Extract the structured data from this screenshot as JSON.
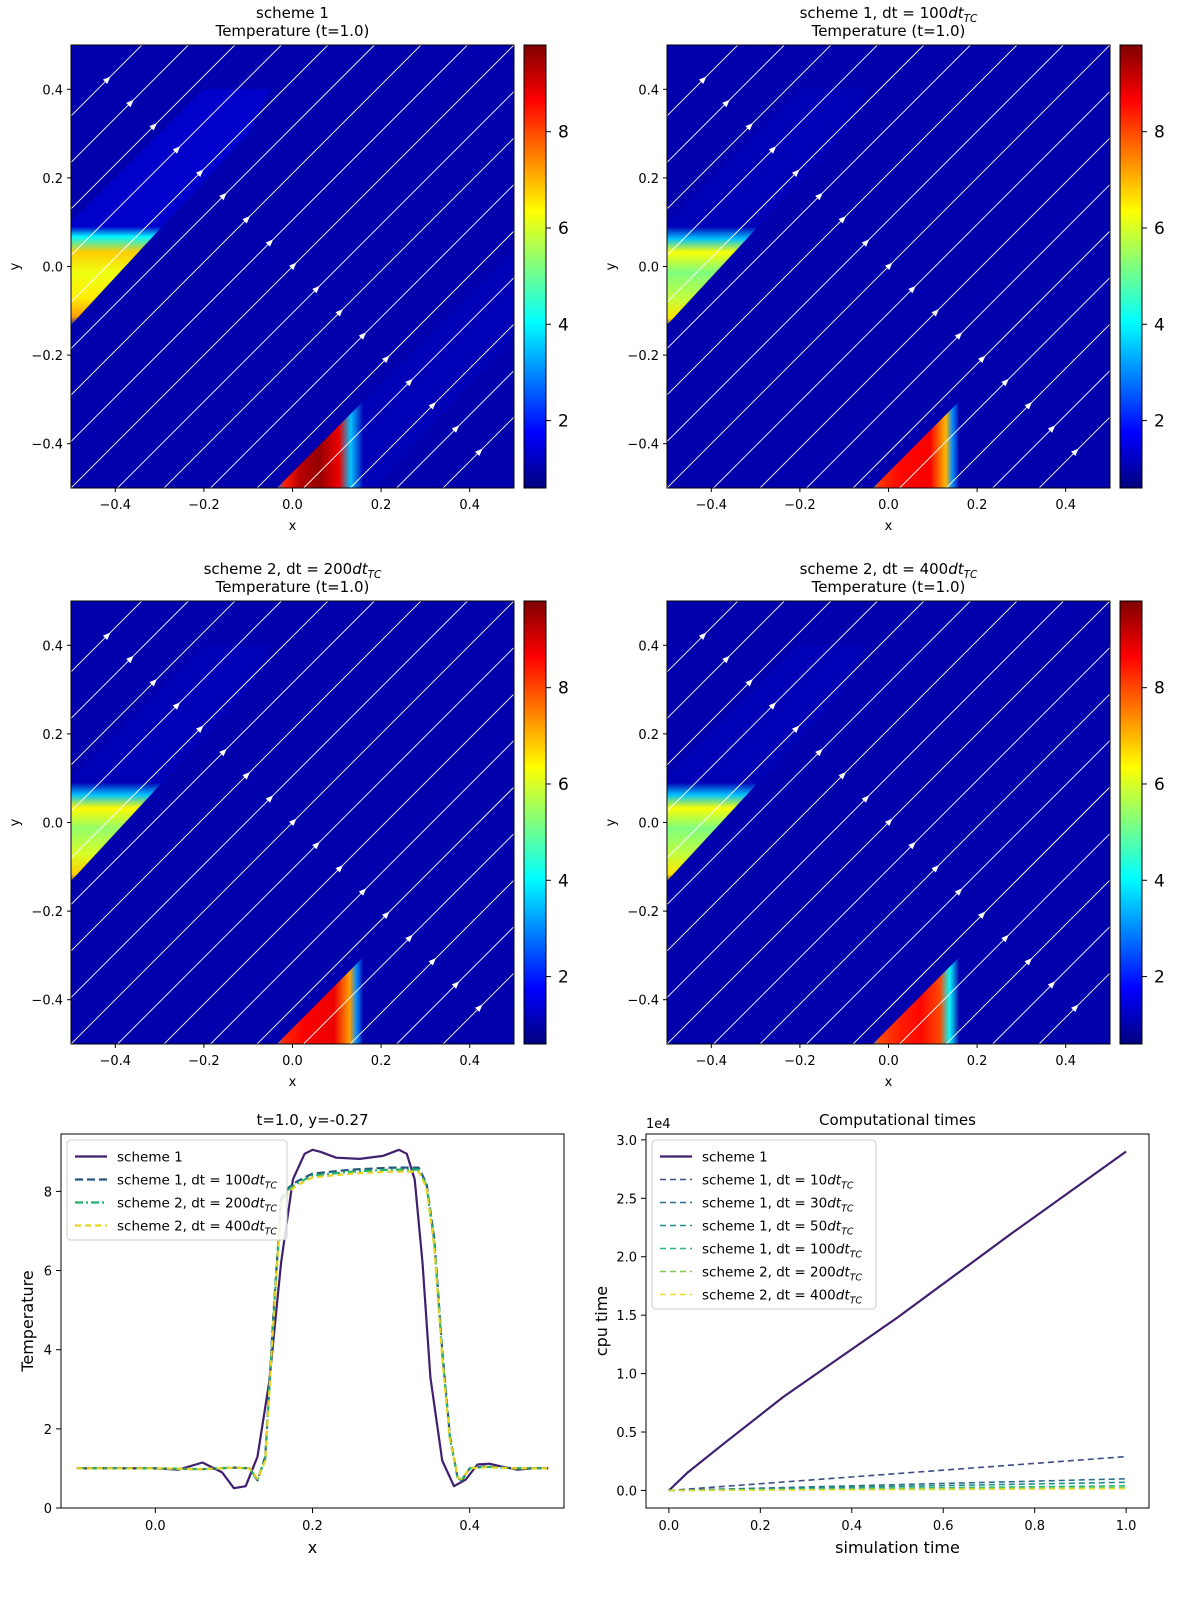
{
  "colors": {
    "jet": [
      "#00007f",
      "#0000ff",
      "#007fff",
      "#00ffff",
      "#7fff7f",
      "#ffff00",
      "#ff7f00",
      "#ff0000",
      "#7f0000"
    ],
    "scheme1": "#3f1f6e",
    "s1_100": "#24587d",
    "s2_200": "#22b26e",
    "s2_400": "#e6d21f",
    "s1_10": "#3c4b8a",
    "s1_30": "#2c6b8e",
    "s1_50": "#1f8e86",
    "s1_100b": "#2eb57a",
    "s2_200b": "#7fcc50",
    "s2_400b": "#e4dc2c"
  },
  "chart_data": [
    {
      "type": "heatmap",
      "title_line1": "scheme 1",
      "title_line2": "Temperature (t=1.0)",
      "xlabel": "x",
      "ylabel": "y",
      "xlim": [
        -0.5,
        0.5
      ],
      "ylim": [
        -0.5,
        0.5
      ],
      "xticks": [
        "−0.4",
        "−0.2",
        "0.0",
        "0.2",
        "0.4"
      ],
      "yticks": [
        "−0.4",
        "−0.2",
        "0.0",
        "0.2",
        "0.4"
      ],
      "colorbar_ticks": [
        "2",
        "4",
        "6",
        "8"
      ],
      "colorbar_range": [
        0.6,
        9.8
      ]
    },
    {
      "type": "heatmap",
      "title_line1": "scheme 1, dt = 100dt_TC",
      "title_line2": "Temperature (t=1.0)",
      "xlabel": "x",
      "ylabel": "y",
      "xlim": [
        -0.5,
        0.5
      ],
      "ylim": [
        -0.5,
        0.5
      ],
      "xticks": [
        "−0.4",
        "−0.2",
        "0.0",
        "0.2",
        "0.4"
      ],
      "yticks": [
        "−0.4",
        "−0.2",
        "0.0",
        "0.2",
        "0.4"
      ],
      "colorbar_ticks": [
        "2",
        "4",
        "6",
        "8"
      ],
      "colorbar_range": [
        0.6,
        9.8
      ]
    },
    {
      "type": "heatmap",
      "title_line1": "scheme 2, dt = 200dt_TC",
      "title_line2": "Temperature (t=1.0)",
      "xlabel": "x",
      "ylabel": "y",
      "xlim": [
        -0.5,
        0.5
      ],
      "ylim": [
        -0.5,
        0.5
      ],
      "xticks": [
        "−0.4",
        "−0.2",
        "0.0",
        "0.2",
        "0.4"
      ],
      "yticks": [
        "−0.4",
        "−0.2",
        "0.0",
        "0.2",
        "0.4"
      ],
      "colorbar_ticks": [
        "2",
        "4",
        "6",
        "8"
      ],
      "colorbar_range": [
        0.6,
        9.8
      ]
    },
    {
      "type": "heatmap",
      "title_line1": "scheme 2, dt = 400dt_TC",
      "title_line2": "Temperature (t=1.0)",
      "xlabel": "x",
      "ylabel": "y",
      "xlim": [
        -0.5,
        0.5
      ],
      "ylim": [
        -0.5,
        0.5
      ],
      "xticks": [
        "−0.4",
        "−0.2",
        "0.0",
        "0.2",
        "0.4"
      ],
      "yticks": [
        "−0.4",
        "−0.2",
        "0.0",
        "0.2",
        "0.4"
      ],
      "colorbar_ticks": [
        "2",
        "4",
        "6",
        "8"
      ],
      "colorbar_range": [
        0.6,
        9.8
      ]
    },
    {
      "type": "line",
      "title": "t=1.0, y=-0.27",
      "xlabel": "x",
      "ylabel": "Temperature",
      "xlim": [
        -0.12,
        0.52
      ],
      "ylim": [
        0,
        9.45
      ],
      "xticks": [
        "0.0",
        "0.2",
        "0.4"
      ],
      "yticks": [
        "0",
        "2",
        "4",
        "6",
        "8"
      ],
      "legend_position": "top-left",
      "series": [
        {
          "name": "scheme 1",
          "style": "solid",
          "x": [
            -0.1,
            0.0,
            0.03,
            0.06,
            0.085,
            0.1,
            0.115,
            0.13,
            0.145,
            0.16,
            0.175,
            0.19,
            0.2,
            0.21,
            0.23,
            0.26,
            0.29,
            0.31,
            0.32,
            0.33,
            0.34,
            0.35,
            0.365,
            0.38,
            0.395,
            0.41,
            0.425,
            0.44,
            0.46,
            0.48,
            0.5
          ],
          "y": [
            1.0,
            1.0,
            0.97,
            1.15,
            0.9,
            0.5,
            0.55,
            1.3,
            3.2,
            6.2,
            8.3,
            8.95,
            9.05,
            9.0,
            8.85,
            8.82,
            8.9,
            9.05,
            8.95,
            8.3,
            6.2,
            3.3,
            1.2,
            0.55,
            0.72,
            1.1,
            1.12,
            1.05,
            0.97,
            1.0,
            1.0
          ]
        },
        {
          "name": "scheme 1, dt = 100dt_TC",
          "style": "dashed",
          "x": [
            -0.1,
            0.0,
            0.06,
            0.1,
            0.12,
            0.13,
            0.14,
            0.15,
            0.16,
            0.17,
            0.18,
            0.2,
            0.25,
            0.3,
            0.335,
            0.345,
            0.355,
            0.365,
            0.375,
            0.385,
            0.39,
            0.4,
            0.42,
            0.46,
            0.5
          ],
          "y": [
            1.0,
            1.0,
            0.98,
            1.02,
            1.0,
            0.7,
            1.3,
            4.8,
            7.8,
            8.1,
            8.25,
            8.45,
            8.55,
            8.6,
            8.6,
            8.2,
            6.8,
            4.0,
            1.8,
            0.72,
            0.7,
            1.0,
            1.05,
            1.0,
            1.0
          ]
        },
        {
          "name": "scheme 2, dt = 200dt_TC",
          "style": "dashdot",
          "x": [
            -0.1,
            0.0,
            0.06,
            0.1,
            0.12,
            0.13,
            0.14,
            0.15,
            0.16,
            0.17,
            0.18,
            0.2,
            0.25,
            0.3,
            0.335,
            0.345,
            0.355,
            0.365,
            0.375,
            0.385,
            0.39,
            0.4,
            0.42,
            0.46,
            0.5
          ],
          "y": [
            1.0,
            1.0,
            0.98,
            1.02,
            1.0,
            0.72,
            1.25,
            4.7,
            7.75,
            8.05,
            8.2,
            8.4,
            8.5,
            8.55,
            8.55,
            8.15,
            6.7,
            3.9,
            1.75,
            0.74,
            0.72,
            1.0,
            1.04,
            1.0,
            1.0
          ]
        },
        {
          "name": "scheme 2, dt = 400dt_TC",
          "style": "dashed",
          "x": [
            -0.1,
            0.0,
            0.06,
            0.1,
            0.12,
            0.13,
            0.14,
            0.15,
            0.16,
            0.17,
            0.18,
            0.2,
            0.25,
            0.3,
            0.335,
            0.345,
            0.355,
            0.365,
            0.375,
            0.385,
            0.39,
            0.4,
            0.42,
            0.46,
            0.5
          ],
          "y": [
            1.0,
            1.0,
            0.98,
            1.02,
            1.0,
            0.74,
            1.2,
            4.6,
            7.7,
            8.0,
            8.15,
            8.35,
            8.45,
            8.5,
            8.5,
            8.1,
            6.6,
            3.8,
            1.7,
            0.76,
            0.74,
            1.0,
            1.03,
            1.0,
            1.0
          ]
        }
      ]
    },
    {
      "type": "line",
      "title": "Computational times",
      "xlabel": "simulation time",
      "ylabel": "cpu time",
      "offset_label": "1e4",
      "xlim": [
        -0.05,
        1.05
      ],
      "ylim": [
        -0.15,
        3.05
      ],
      "xticks": [
        "0.0",
        "0.2",
        "0.4",
        "0.6",
        "0.8",
        "1.0"
      ],
      "yticks": [
        "0.0",
        "0.5",
        "1.0",
        "1.5",
        "2.0",
        "2.5",
        "3.0"
      ],
      "legend_position": "top-left",
      "series": [
        {
          "name": "scheme 1",
          "style": "solid",
          "x": [
            0,
            0.04,
            0.12,
            0.25,
            0.5,
            0.75,
            1.0
          ],
          "y": [
            0,
            0.15,
            0.4,
            0.8,
            1.48,
            2.2,
            2.9
          ]
        },
        {
          "name": "scheme 1, dt = 10dt_TC",
          "style": "dashed",
          "x": [
            0,
            1.0
          ],
          "y": [
            0,
            0.29
          ]
        },
        {
          "name": "scheme 1, dt = 30dt_TC",
          "style": "dashed",
          "x": [
            0,
            1.0
          ],
          "y": [
            0,
            0.1
          ]
        },
        {
          "name": "scheme 1, dt = 50dt_TC",
          "style": "dashed",
          "x": [
            0,
            1.0
          ],
          "y": [
            0,
            0.07
          ]
        },
        {
          "name": "scheme 1, dt = 100dt_TC",
          "style": "dashed",
          "x": [
            0,
            1.0
          ],
          "y": [
            0,
            0.04
          ]
        },
        {
          "name": "scheme 2, dt = 200dt_TC",
          "style": "dashed",
          "x": [
            0,
            1.0
          ],
          "y": [
            0,
            0.025
          ]
        },
        {
          "name": "scheme 2, dt = 400dt_TC",
          "style": "dashed",
          "x": [
            0,
            1.0
          ],
          "y": [
            0,
            0.015
          ]
        }
      ]
    }
  ]
}
